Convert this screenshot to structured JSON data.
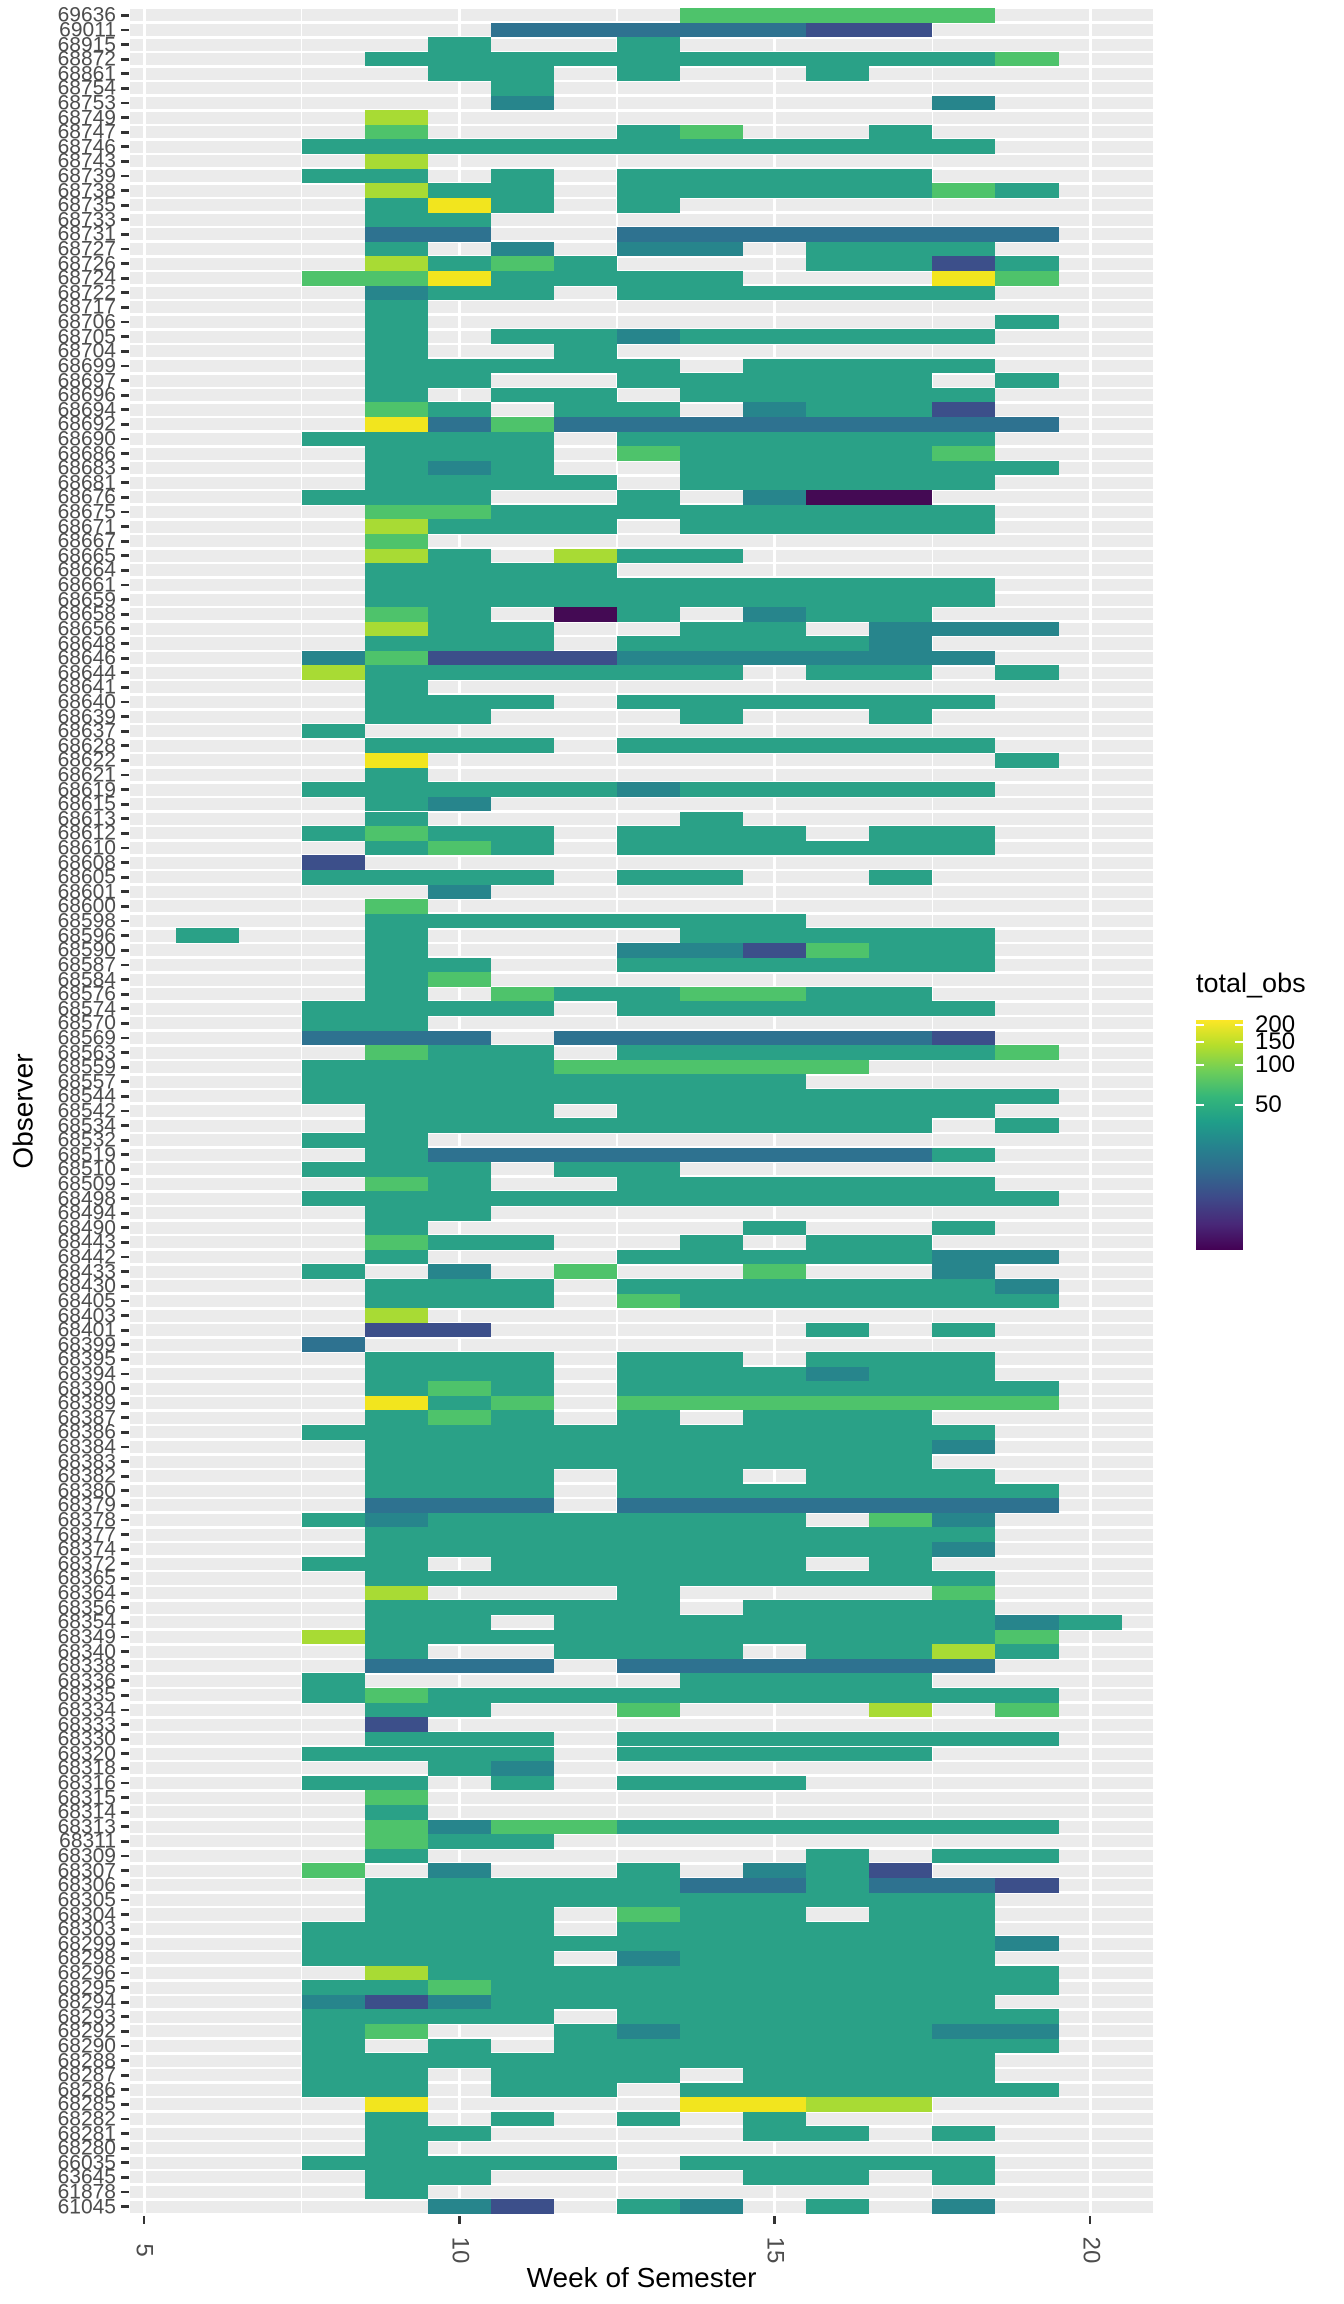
{
  "chart_data": {
    "type": "heatmap",
    "title": "",
    "xlabel": "Week of Semester",
    "ylabel": "Observer",
    "x_ticks": [
      5,
      10,
      15,
      20
    ],
    "x_range": [
      4.78,
      21.0
    ],
    "grid": "white gridlines on gray panel (ggplot theme_gray)",
    "legend_position": "right",
    "legend_title": "total_obs",
    "legend_ticks": [
      200,
      150,
      100,
      50
    ],
    "legend_scale": "log",
    "legend_range": [
      4,
      218
    ],
    "colormap": "viridis",
    "legend_gradient_top_to_bottom": [
      "#fde725",
      "#b5de2b",
      "#6ece58",
      "#35b779",
      "#1f9e89",
      "#26828e",
      "#31688e",
      "#3e4989",
      "#482878",
      "#440154"
    ],
    "week_of_first_pattern_char": 6,
    "levels": {
      "t": {
        "name": "teal",
        "color": "#2aa187",
        "value": 40
      },
      "d": {
        "name": "dark-teal",
        "color": "#27858c",
        "value": 22
      },
      "s": {
        "name": "steel-blue",
        "color": "#2e7290",
        "value": 13
      },
      "n": {
        "name": "navy",
        "color": "#3c4f8a",
        "value": 7
      },
      "k": {
        "name": "dark-purple",
        "color": "#440a54",
        "value": 1
      },
      "g": {
        "name": "green",
        "color": "#4ec36b",
        "value": 85
      },
      "l": {
        "name": "lime",
        "color": "#a8db34",
        "value": 145
      },
      "y": {
        "name": "yellow",
        "color": "#f2e51e",
        "value": 205
      }
    },
    "rows": [
      {
        "id": "69636",
        "cells": "........ggggg.."
      },
      {
        "id": "69011",
        "cells": ".....sssssnn..."
      },
      {
        "id": "68915",
        "cells": "....t..t......."
      },
      {
        "id": "68872",
        "cells": "...ttttttttttg."
      },
      {
        "id": "68861",
        "cells": "....tt.t..t...."
      },
      {
        "id": "68754",
        "cells": ".....t........."
      },
      {
        "id": "68753",
        "cells": ".....d......d.."
      },
      {
        "id": "68749",
        "cells": "...l..........."
      },
      {
        "id": "68747",
        "cells": "...g...tg..t..."
      },
      {
        "id": "68746",
        "cells": "..ttttttttttt.."
      },
      {
        "id": "68743",
        "cells": "...l..........."
      },
      {
        "id": "68739",
        "cells": "..tt.t.ttttt..."
      },
      {
        "id": "68738",
        "cells": "...ltt.tttttgt."
      },
      {
        "id": "68735",
        "cells": "...tyt.t......."
      },
      {
        "id": "68733",
        "cells": "...tt.........."
      },
      {
        "id": "68731",
        "cells": "...ss..sssssss."
      },
      {
        "id": "68727",
        "cells": "...t.d.dd.ttt.."
      },
      {
        "id": "68726",
        "cells": "...ltgt...ttnt."
      },
      {
        "id": "68724",
        "cells": "..ggytttt...yg."
      },
      {
        "id": "68722",
        "cells": "...dtt.tttttt.."
      },
      {
        "id": "68717",
        "cells": "...t..........."
      },
      {
        "id": "68706",
        "cells": "...t.........t."
      },
      {
        "id": "68705",
        "cells": "...t.ttdttttt.."
      },
      {
        "id": "68704",
        "cells": "...t..t........"
      },
      {
        "id": "68699",
        "cells": "...ttttt.tttt.."
      },
      {
        "id": "68697",
        "cells": "...tt..ttttt.t."
      },
      {
        "id": "68696",
        "cells": "...t.tt.ttttt.."
      },
      {
        "id": "68694",
        "cells": "...gt.tt.dttn.."
      },
      {
        "id": "68692",
        "cells": "...ysgssssssss."
      },
      {
        "id": "68690",
        "cells": "..tttt.tttttt.."
      },
      {
        "id": "68686",
        "cells": "...ttt.gttttg.."
      },
      {
        "id": "68683",
        "cells": "...tdt..tttttt."
      },
      {
        "id": "68681",
        "cells": "...tttt.ttttt.."
      },
      {
        "id": "68676",
        "cells": "..ttt..t.dkk..."
      },
      {
        "id": "68675",
        "cells": "...ggtttttttt.."
      },
      {
        "id": "68671",
        "cells": "...lttt.ttttt.."
      },
      {
        "id": "68667",
        "cells": "...g..........."
      },
      {
        "id": "68665",
        "cells": "...lt.ltt......"
      },
      {
        "id": "68664",
        "cells": "...tttt........"
      },
      {
        "id": "68661",
        "cells": "...tttttttttt.."
      },
      {
        "id": "68659",
        "cells": "...tttttttttt.."
      },
      {
        "id": "68658",
        "cells": "...gt.kt.dtt..."
      },
      {
        "id": "68656",
        "cells": "...ltt..tt.ddd."
      },
      {
        "id": "68648",
        "cells": "...ttt.ttttd..."
      },
      {
        "id": "68646",
        "cells": "..dgnnndddddd.."
      },
      {
        "id": "68644",
        "cells": "..ltttttt.tt.t."
      },
      {
        "id": "68641",
        "cells": "...t..........."
      },
      {
        "id": "68640",
        "cells": "...ttt.tttttt.."
      },
      {
        "id": "68639",
        "cells": "...tt...t..t..."
      },
      {
        "id": "68637",
        "cells": "..t............"
      },
      {
        "id": "68628",
        "cells": "...ttt.tttttt.."
      },
      {
        "id": "68622",
        "cells": "...y.........t."
      },
      {
        "id": "68621",
        "cells": "...t..........."
      },
      {
        "id": "68619",
        "cells": "..tttttdttttt.."
      },
      {
        "id": "68615",
        "cells": "...td.........."
      },
      {
        "id": "68613",
        "cells": "...t....t......"
      },
      {
        "id": "68612",
        "cells": "..tgtt.ttt.tt.."
      },
      {
        "id": "68610",
        "cells": "...tgt.tttttt.."
      },
      {
        "id": "68608",
        "cells": "..n............"
      },
      {
        "id": "68605",
        "cells": "..tttt.tt..t..."
      },
      {
        "id": "68601",
        "cells": "....d.........."
      },
      {
        "id": "68600",
        "cells": "...g..........."
      },
      {
        "id": "68598",
        "cells": "...ttttttt....."
      },
      {
        "id": "68596",
        "cells": "t..t....ttttt.."
      },
      {
        "id": "68590",
        "cells": "...t...ddngtt.."
      },
      {
        "id": "68587",
        "cells": "...tt..tttttt.."
      },
      {
        "id": "68584",
        "cells": "...tg.........."
      },
      {
        "id": "68576",
        "cells": "...t.gttggtt..."
      },
      {
        "id": "68574",
        "cells": "..tttt.tttttt.."
      },
      {
        "id": "68570",
        "cells": "..tt..........."
      },
      {
        "id": "68569",
        "cells": "..sss.ssssssn.."
      },
      {
        "id": "68563",
        "cells": "...gtt.ttttttg."
      },
      {
        "id": "68559",
        "cells": "..ttttggggg...."
      },
      {
        "id": "68557",
        "cells": "..tttttttt....."
      },
      {
        "id": "68544",
        "cells": "..tttttttttttt."
      },
      {
        "id": "68542",
        "cells": "...ttt.tttttt.."
      },
      {
        "id": "68534",
        "cells": "...ttttttttt.t."
      },
      {
        "id": "68532",
        "cells": "..tt..........."
      },
      {
        "id": "68519",
        "cells": "...tsssssssst.."
      },
      {
        "id": "68510",
        "cells": "..ttt.tt......."
      },
      {
        "id": "68509",
        "cells": "...gt..tttttt.."
      },
      {
        "id": "68498",
        "cells": "..tttttttttttt."
      },
      {
        "id": "68494",
        "cells": "...tt.........."
      },
      {
        "id": "68490",
        "cells": "...t.....t..t.."
      },
      {
        "id": "68443",
        "cells": "...gtt..t.tt..."
      },
      {
        "id": "68442",
        "cells": "...t...tttttdd."
      },
      {
        "id": "68433",
        "cells": "..t.d.g..g..d.."
      },
      {
        "id": "68430",
        "cells": "...ttt.ttttttd."
      },
      {
        "id": "68405",
        "cells": "...ttt.gtttttt."
      },
      {
        "id": "68403",
        "cells": "...l..........."
      },
      {
        "id": "68401",
        "cells": "...nn.....t.t.."
      },
      {
        "id": "68399",
        "cells": "..s............"
      },
      {
        "id": "68395",
        "cells": "...ttt.tt.ttt.."
      },
      {
        "id": "68394",
        "cells": "...ttt.tttdtt.."
      },
      {
        "id": "68390",
        "cells": "...tgt.ttttttt."
      },
      {
        "id": "68389",
        "cells": "...ytg.ggggggg."
      },
      {
        "id": "68387",
        "cells": "...tgt.t.ttt..."
      },
      {
        "id": "68386",
        "cells": "..ttttttttttt.."
      },
      {
        "id": "68384",
        "cells": "...tttttttttd.."
      },
      {
        "id": "68383",
        "cells": "...ttttttttt..."
      },
      {
        "id": "68382",
        "cells": "...ttt.tt.ttt.."
      },
      {
        "id": "68380",
        "cells": "...ttt.ttttttt."
      },
      {
        "id": "68379",
        "cells": "...sss.sssssss."
      },
      {
        "id": "68378",
        "cells": "..tdtttttt.gd.."
      },
      {
        "id": "68377",
        "cells": "...tttttttttt.."
      },
      {
        "id": "68374",
        "cells": "...tttttttttd.."
      },
      {
        "id": "68372",
        "cells": "..tt.ttttt.t..."
      },
      {
        "id": "68365",
        "cells": "...tttttttttt.."
      },
      {
        "id": "68364",
        "cells": "...l...t....g.."
      },
      {
        "id": "68356",
        "cells": "...ttttt.tttt.."
      },
      {
        "id": "68354",
        "cells": "...tt.tttttttdt"
      },
      {
        "id": "68349",
        "cells": "..lttttttttttg."
      },
      {
        "id": "68340",
        "cells": "...t..ttt.ttlt."
      },
      {
        "id": "68338",
        "cells": "...sss.ssssss.."
      },
      {
        "id": "68336",
        "cells": "..t.....tttt..."
      },
      {
        "id": "68335",
        "cells": "..tgtttttttttt."
      },
      {
        "id": "68334",
        "cells": "...tt..g...l.g."
      },
      {
        "id": "68333",
        "cells": "...n..........."
      },
      {
        "id": "68330",
        "cells": "...ttt.ttttttt."
      },
      {
        "id": "68320",
        "cells": "..tttt.ttttt..."
      },
      {
        "id": "68318",
        "cells": "....td........."
      },
      {
        "id": "68316",
        "cells": "..tt.t.ttt....."
      },
      {
        "id": "68315",
        "cells": "...g..........."
      },
      {
        "id": "68314",
        "cells": "...t..........."
      },
      {
        "id": "68313",
        "cells": "...gdggttttttt."
      },
      {
        "id": "68311",
        "cells": "...gtt........."
      },
      {
        "id": "68309",
        "cells": "...t......t.tt."
      },
      {
        "id": "68307",
        "cells": "..g.d..t.dtn..."
      },
      {
        "id": "68306",
        "cells": "...tttttsstssn."
      },
      {
        "id": "68305",
        "cells": "...tttttttttt.."
      },
      {
        "id": "68304",
        "cells": "...ttt.gtt.tt.."
      },
      {
        "id": "68303",
        "cells": "..tttt.tttttt.."
      },
      {
        "id": "68299",
        "cells": "..tttttttttttd."
      },
      {
        "id": "68298",
        "cells": "..tttt.dttttt.."
      },
      {
        "id": "68296",
        "cells": "...ltttttttttt."
      },
      {
        "id": "68295",
        "cells": "..ttgttttttttt."
      },
      {
        "id": "68294",
        "cells": "..dndtttttttt.."
      },
      {
        "id": "68293",
        "cells": "..tttt.ttttttt."
      },
      {
        "id": "68292",
        "cells": "..tg..tdttttdd."
      },
      {
        "id": "68290",
        "cells": "..t.t.tttttttt."
      },
      {
        "id": "68288",
        "cells": "..ttttttttttt.."
      },
      {
        "id": "68287",
        "cells": "..tt.ttt.tttt.."
      },
      {
        "id": "68286",
        "cells": "..tt.tt.tttttt."
      },
      {
        "id": "68285",
        "cells": "...y....yyll..."
      },
      {
        "id": "68282",
        "cells": "...t.t.t.t....."
      },
      {
        "id": "68281",
        "cells": "...tt....tt.t.."
      },
      {
        "id": "68280",
        "cells": "...t..........."
      },
      {
        "id": "66035",
        "cells": "..ttttt.ttttt.."
      },
      {
        "id": "63645",
        "cells": "...tt....tt.t.."
      },
      {
        "id": "61878",
        "cells": "...t..........."
      },
      {
        "id": "61045",
        "cells": "....dn.td.t.d.."
      }
    ]
  },
  "axes": {
    "x_title": "Week of Semester",
    "y_title": "Observer",
    "x_tick_labels": [
      "5",
      "10",
      "15",
      "20"
    ]
  },
  "legend": {
    "title": "total_obs",
    "tick_labels": [
      "200",
      "150",
      "100",
      "50"
    ]
  },
  "colors": {
    "panel_background": "#ebebeb",
    "gridline": "#ffffff",
    "tick_mark": "#333333",
    "tick_label": "#4d4d4d",
    "axis_title": "#000000"
  }
}
